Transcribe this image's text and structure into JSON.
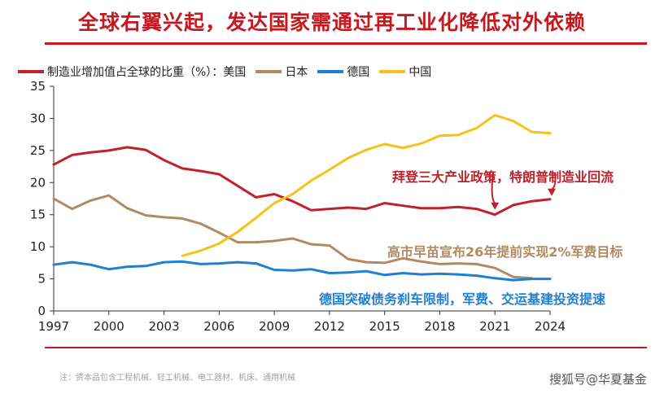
{
  "headline": "全球右翼兴起，发达国家需通过再工业化降低对外依赖",
  "legend": {
    "title_prefix": "制造业增加值占全球的比重（%）：美国",
    "items": [
      "日本",
      "德国",
      "中国"
    ]
  },
  "annotations": {
    "us": "拜登三大产业政策，特朗普制造业回流",
    "japan": "高市早苗宣布26年提前实现2%军费目标",
    "germany": "德国突破债务刹车限制，军费、交运基建投资提速"
  },
  "footnote": "注：资本品包含工程机械、轻工机械、电工器材、机床、通用机械",
  "watermark": "搜狐号@华夏基金",
  "colors": {
    "accent": "#c8171e",
    "us": "#c0212a",
    "japan": "#b18a63",
    "germany": "#1f7fd2",
    "china": "#f6c21a"
  },
  "chart_data": {
    "type": "line",
    "title": "制造业增加值占全球的比重（%）",
    "xlabel": "",
    "ylabel": "",
    "xlim": [
      1997,
      2024
    ],
    "ylim": [
      0,
      35
    ],
    "x_ticks": [
      1997,
      2000,
      2003,
      2006,
      2009,
      2012,
      2015,
      2018,
      2021,
      2024
    ],
    "y_ticks": [
      0,
      5,
      10,
      15,
      20,
      25,
      30,
      35
    ],
    "grid": false,
    "legend_position": "top",
    "series": [
      {
        "name": "美国",
        "color": "#c0212a",
        "x": [
          1997,
          1998,
          1999,
          2000,
          2001,
          2002,
          2003,
          2004,
          2005,
          2006,
          2007,
          2008,
          2009,
          2010,
          2011,
          2012,
          2013,
          2014,
          2015,
          2016,
          2017,
          2018,
          2019,
          2020,
          2021,
          2022,
          2023,
          2024
        ],
        "values": [
          22.8,
          24.3,
          24.7,
          25.0,
          25.5,
          25.1,
          23.5,
          22.2,
          21.8,
          21.3,
          19.5,
          17.7,
          18.2,
          17.1,
          15.7,
          15.9,
          16.1,
          15.9,
          16.8,
          16.4,
          16.0,
          16.0,
          16.2,
          15.9,
          15.0,
          16.5,
          17.1,
          17.4
        ]
      },
      {
        "name": "日本",
        "color": "#b18a63",
        "x": [
          1997,
          1998,
          1999,
          2000,
          2001,
          2002,
          2003,
          2004,
          2005,
          2006,
          2007,
          2008,
          2009,
          2010,
          2011,
          2012,
          2013,
          2014,
          2015,
          2016,
          2017,
          2018,
          2019,
          2020,
          2021,
          2022,
          2023
        ],
        "values": [
          17.5,
          15.9,
          17.2,
          18.0,
          16.0,
          14.9,
          14.6,
          14.4,
          13.6,
          12.2,
          10.7,
          10.7,
          10.9,
          11.3,
          10.4,
          10.2,
          8.1,
          7.6,
          7.5,
          8.2,
          7.7,
          7.3,
          7.4,
          7.3,
          6.7,
          5.3,
          5.1
        ]
      },
      {
        "name": "德国",
        "color": "#1f7fd2",
        "x": [
          1997,
          1998,
          1999,
          2000,
          2001,
          2002,
          2003,
          2004,
          2005,
          2006,
          2007,
          2008,
          2009,
          2010,
          2011,
          2012,
          2013,
          2014,
          2015,
          2016,
          2017,
          2018,
          2019,
          2020,
          2021,
          2022,
          2023,
          2024
        ],
        "values": [
          7.2,
          7.6,
          7.2,
          6.5,
          6.9,
          7.0,
          7.6,
          7.7,
          7.3,
          7.4,
          7.6,
          7.4,
          6.4,
          6.3,
          6.5,
          5.9,
          6.0,
          6.2,
          5.6,
          5.9,
          5.7,
          5.8,
          5.7,
          5.5,
          5.1,
          4.8,
          5.0,
          5.0
        ]
      },
      {
        "name": "中国",
        "color": "#f6c21a",
        "x": [
          2004,
          2005,
          2006,
          2007,
          2008,
          2009,
          2010,
          2011,
          2012,
          2013,
          2014,
          2015,
          2016,
          2017,
          2018,
          2019,
          2020,
          2021,
          2022,
          2023,
          2024
        ],
        "values": [
          8.6,
          9.4,
          10.5,
          12.3,
          14.5,
          16.8,
          18.2,
          20.3,
          22.0,
          23.8,
          25.1,
          26.0,
          25.4,
          26.1,
          27.3,
          27.4,
          28.5,
          30.5,
          29.6,
          27.9,
          27.7
        ]
      }
    ]
  }
}
